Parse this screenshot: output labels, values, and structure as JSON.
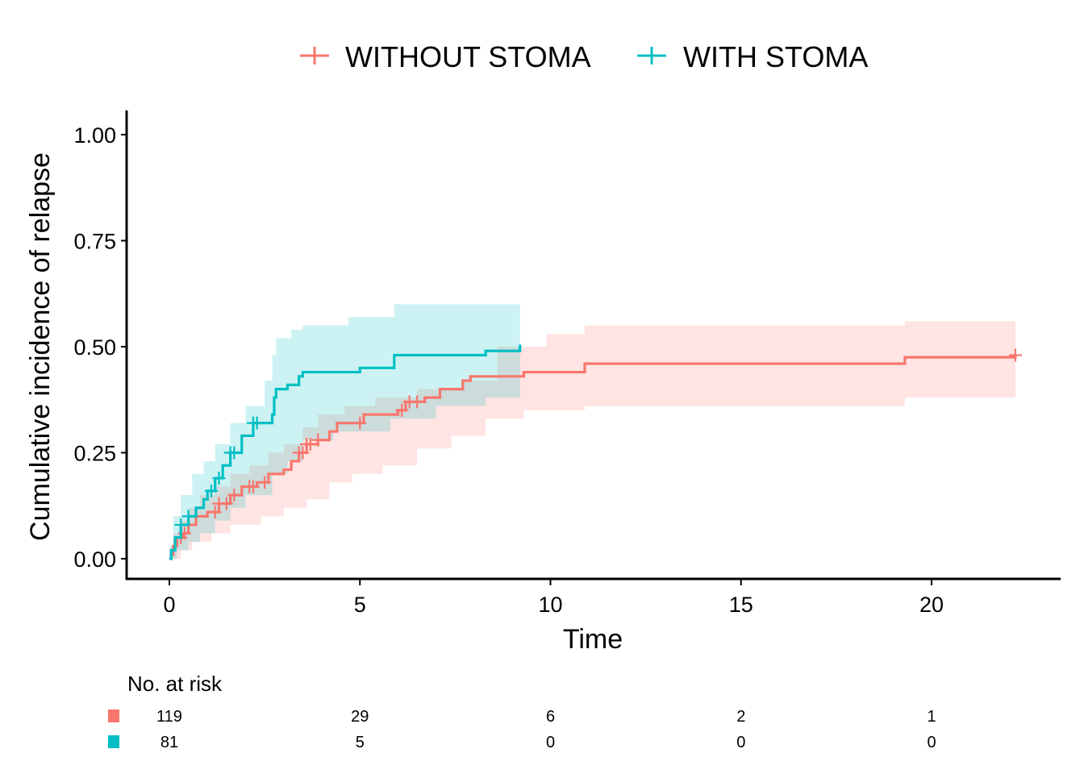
{
  "chart_data": {
    "type": "line",
    "subtype": "step-cumulative-incidence",
    "title": "",
    "xlabel": "Time",
    "ylabel": "Cumulative incidence of relapse",
    "xlim": [
      -1.1,
      23.7
    ],
    "ylim": [
      -0.047,
      1.047
    ],
    "x_ticks": [
      0,
      5,
      10,
      15,
      20
    ],
    "x_tick_labels": [
      "0",
      "5",
      "10",
      "15",
      "20"
    ],
    "y_ticks": [
      0,
      0.25,
      0.5,
      0.75,
      1.0
    ],
    "y_tick_labels": [
      "0.00",
      "0.25",
      "0.50",
      "0.75",
      "1.00"
    ],
    "grid": false,
    "legend_position": "top",
    "legend": [
      {
        "label": "WITHOUT STOMA",
        "color": "#F8766D",
        "marker": "plus"
      },
      {
        "label": "WITH STOMA",
        "color": "#00BFC4",
        "marker": "plus"
      }
    ],
    "series": [
      {
        "name": "WITHOUT STOMA",
        "color": "#F8766D",
        "band_color": "#F8766D",
        "band_opacity": 0.2,
        "steps": [
          [
            0,
            0
          ],
          [
            0.05,
            0.01
          ],
          [
            0.1,
            0.03
          ],
          [
            0.2,
            0.05
          ],
          [
            0.35,
            0.06
          ],
          [
            0.5,
            0.08
          ],
          [
            0.7,
            0.1
          ],
          [
            1.0,
            0.11
          ],
          [
            1.3,
            0.13
          ],
          [
            1.6,
            0.15
          ],
          [
            1.9,
            0.17
          ],
          [
            2.3,
            0.18
          ],
          [
            2.6,
            0.2
          ],
          [
            3.0,
            0.21
          ],
          [
            3.2,
            0.23
          ],
          [
            3.4,
            0.25
          ],
          [
            3.6,
            0.27
          ],
          [
            3.9,
            0.28
          ],
          [
            4.2,
            0.3
          ],
          [
            4.4,
            0.32
          ],
          [
            5.1,
            0.34
          ],
          [
            6.0,
            0.35
          ],
          [
            6.2,
            0.37
          ],
          [
            6.7,
            0.38
          ],
          [
            7.1,
            0.4
          ],
          [
            7.7,
            0.42
          ],
          [
            7.9,
            0.43
          ],
          [
            9.3,
            0.44
          ],
          [
            10.9,
            0.46
          ],
          [
            19.3,
            0.475
          ],
          [
            22.2,
            0.48
          ]
        ],
        "upper": [
          [
            0,
            0.01
          ],
          [
            0.1,
            0.06
          ],
          [
            0.3,
            0.09
          ],
          [
            0.5,
            0.12
          ],
          [
            0.8,
            0.15
          ],
          [
            1.2,
            0.17
          ],
          [
            1.6,
            0.2
          ],
          [
            2.1,
            0.22
          ],
          [
            2.6,
            0.25
          ],
          [
            3.0,
            0.27
          ],
          [
            3.5,
            0.31
          ],
          [
            3.9,
            0.34
          ],
          [
            4.6,
            0.36
          ],
          [
            5.4,
            0.38
          ],
          [
            6.5,
            0.4
          ],
          [
            7.7,
            0.42
          ],
          [
            8.6,
            0.5
          ],
          [
            9.9,
            0.53
          ],
          [
            10.9,
            0.55
          ],
          [
            19.3,
            0.56
          ],
          [
            22.2,
            0.56
          ]
        ],
        "lower": [
          [
            0,
            0.0
          ],
          [
            0.3,
            0.02
          ],
          [
            0.6,
            0.04
          ],
          [
            1.1,
            0.06
          ],
          [
            1.6,
            0.08
          ],
          [
            2.4,
            0.1
          ],
          [
            3.0,
            0.12
          ],
          [
            3.6,
            0.14
          ],
          [
            4.2,
            0.18
          ],
          [
            4.8,
            0.2
          ],
          [
            5.6,
            0.22
          ],
          [
            6.5,
            0.26
          ],
          [
            7.4,
            0.29
          ],
          [
            8.3,
            0.33
          ],
          [
            9.3,
            0.35
          ],
          [
            10.9,
            0.36
          ],
          [
            19.3,
            0.38
          ],
          [
            22.2,
            0.38
          ]
        ],
        "censor_times": [
          0.3,
          0.4,
          1.2,
          1.3,
          1.5,
          1.7,
          2.1,
          2.2,
          2.5,
          3.4,
          3.5,
          3.6,
          3.7,
          3.9,
          5.0,
          6.1,
          6.3,
          6.5,
          22.2
        ],
        "at_risk": [
          119,
          29,
          6,
          2,
          1
        ]
      },
      {
        "name": "WITH STOMA",
        "color": "#00BFC4",
        "band_color": "#00BFC4",
        "band_opacity": 0.2,
        "steps": [
          [
            0,
            0
          ],
          [
            0.05,
            0.02
          ],
          [
            0.15,
            0.05
          ],
          [
            0.3,
            0.08
          ],
          [
            0.5,
            0.1
          ],
          [
            0.7,
            0.12
          ],
          [
            0.9,
            0.14
          ],
          [
            1.0,
            0.16
          ],
          [
            1.2,
            0.19
          ],
          [
            1.4,
            0.22
          ],
          [
            1.6,
            0.25
          ],
          [
            1.9,
            0.29
          ],
          [
            2.2,
            0.32
          ],
          [
            2.7,
            0.34
          ],
          [
            2.75,
            0.38
          ],
          [
            2.8,
            0.4
          ],
          [
            3.1,
            0.41
          ],
          [
            3.4,
            0.43
          ],
          [
            3.5,
            0.44
          ],
          [
            5.0,
            0.45
          ],
          [
            5.9,
            0.48
          ],
          [
            8.3,
            0.49
          ],
          [
            9.2,
            0.505
          ]
        ],
        "upper": [
          [
            0,
            0.03
          ],
          [
            0.1,
            0.1
          ],
          [
            0.3,
            0.15
          ],
          [
            0.6,
            0.2
          ],
          [
            0.9,
            0.23
          ],
          [
            1.2,
            0.27
          ],
          [
            1.6,
            0.32
          ],
          [
            2.0,
            0.36
          ],
          [
            2.5,
            0.42
          ],
          [
            2.7,
            0.48
          ],
          [
            2.8,
            0.52
          ],
          [
            3.2,
            0.54
          ],
          [
            3.5,
            0.55
          ],
          [
            4.7,
            0.57
          ],
          [
            5.9,
            0.6
          ],
          [
            8.6,
            0.6
          ],
          [
            9.2,
            0.62
          ]
        ],
        "lower": [
          [
            0,
            0.0
          ],
          [
            0.2,
            0.02
          ],
          [
            0.5,
            0.04
          ],
          [
            0.8,
            0.06
          ],
          [
            1.2,
            0.09
          ],
          [
            1.6,
            0.12
          ],
          [
            2.0,
            0.15
          ],
          [
            2.7,
            0.2
          ],
          [
            3.1,
            0.23
          ],
          [
            3.5,
            0.28
          ],
          [
            4.3,
            0.3
          ],
          [
            5.8,
            0.33
          ],
          [
            7.0,
            0.36
          ],
          [
            8.3,
            0.38
          ],
          [
            9.2,
            0.39
          ]
        ],
        "censor_times": [
          0.3,
          0.5,
          1.1,
          1.3,
          1.6,
          1.7,
          2.2,
          2.3
        ],
        "at_risk": [
          81,
          5,
          0,
          0,
          0
        ]
      }
    ],
    "risk_table": {
      "title": "No. at risk",
      "times": [
        0,
        5,
        10,
        15,
        20
      ]
    }
  }
}
